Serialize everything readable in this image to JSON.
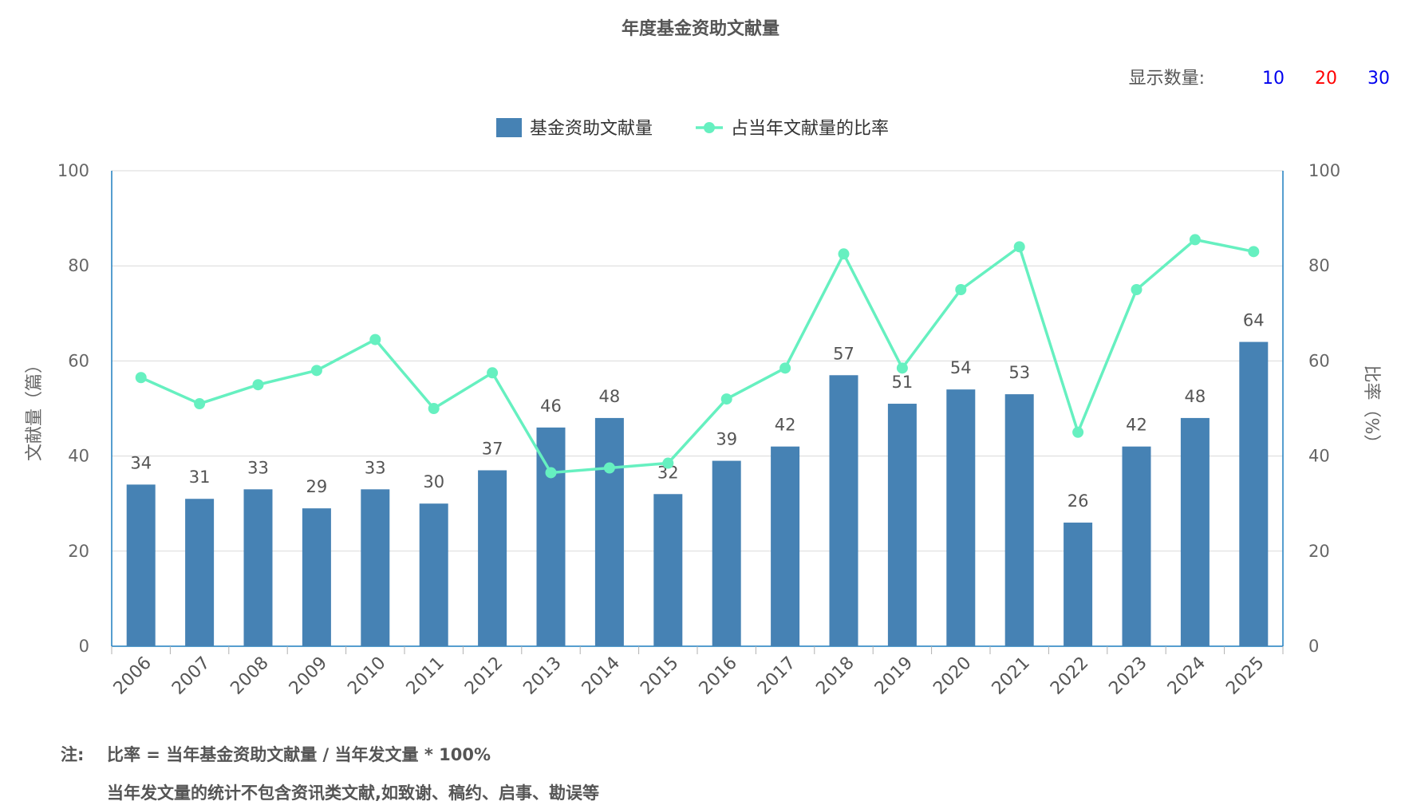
{
  "page": {
    "title": "年度基金资助文献量",
    "display_count": {
      "label": "显示数量:",
      "options": [
        {
          "value": "10",
          "color": "#0000ee"
        },
        {
          "value": "20",
          "color": "#ff0000"
        },
        {
          "value": "30",
          "color": "#0000ee"
        }
      ]
    },
    "notes": {
      "prefix": "注:",
      "line1": "比率 = 当年基金资助文献量 / 当年发文量 * 100%",
      "line2": "当年发文量的统计不包含资讯类文献,如致谢、稿约、启事、勘误等"
    }
  },
  "chart_data": {
    "type": "bar",
    "categories": [
      "2006",
      "2007",
      "2008",
      "2009",
      "2010",
      "2011",
      "2012",
      "2013",
      "2014",
      "2015",
      "2016",
      "2017",
      "2018",
      "2019",
      "2020",
      "2021",
      "2022",
      "2023",
      "2024",
      "2025"
    ],
    "series": [
      {
        "name": "基金资助文献量",
        "type": "bar",
        "axis": "left",
        "color": "#4682b4",
        "values": [
          34,
          31,
          33,
          29,
          33,
          30,
          37,
          46,
          48,
          32,
          39,
          42,
          57,
          51,
          54,
          53,
          26,
          42,
          48,
          64
        ]
      },
      {
        "name": "占当年文献量的比率",
        "type": "line",
        "axis": "right",
        "color": "#66f0c0",
        "values": [
          56.5,
          51,
          55,
          58,
          64.5,
          50,
          57.5,
          36.5,
          37.5,
          38.5,
          52,
          58.5,
          82.5,
          58.5,
          75,
          84,
          45,
          75,
          85.5,
          83
        ]
      }
    ],
    "ylabel": "文献量（篇）",
    "ylabel_right": "比率（%）",
    "ylim": [
      0,
      100
    ],
    "ylim_right": [
      0,
      100
    ],
    "yticks": [
      "0",
      "20",
      "40",
      "60",
      "80",
      "100"
    ],
    "grid": true,
    "legend_position": "top-center"
  }
}
